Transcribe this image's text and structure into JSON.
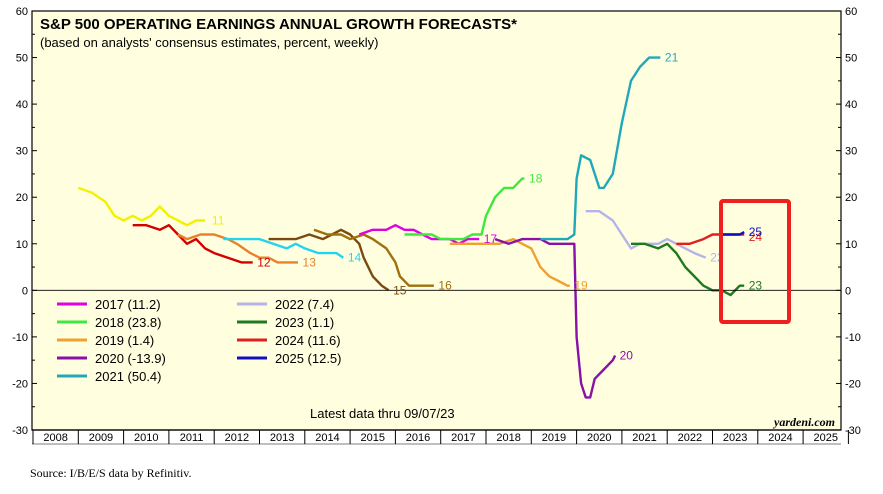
{
  "chart_data": {
    "type": "line",
    "title": "S&P 500 OPERATING EARNINGS ANNUAL GROWTH FORECASTS*",
    "subtitle": "(based on analysts' consensus estimates, percent, weekly)",
    "ylim": [
      -30,
      60
    ],
    "yticks": [
      -30,
      -20,
      -10,
      0,
      10,
      20,
      30,
      40,
      50,
      60
    ],
    "xlim": [
      2008,
      2026
    ],
    "xticks": [
      "2008",
      "2009",
      "2010",
      "2011",
      "2012",
      "2013",
      "2014",
      "2015",
      "2016",
      "2017",
      "2018",
      "2019",
      "2020",
      "2021",
      "2022",
      "2023",
      "2024",
      "2025"
    ],
    "note": "Latest data thru 09/07/23",
    "brand": "yardeni.com",
    "source": "Source: I/B/E/S data by Refinitiv.",
    "series": [
      {
        "name": "11",
        "color": "#f4f000",
        "points": [
          [
            2009.0,
            22
          ],
          [
            2009.3,
            21
          ],
          [
            2009.6,
            19
          ],
          [
            2009.8,
            16
          ],
          [
            2010.0,
            15
          ],
          [
            2010.2,
            16
          ],
          [
            2010.4,
            15
          ],
          [
            2010.6,
            16
          ],
          [
            2010.8,
            18
          ],
          [
            2011.0,
            16
          ],
          [
            2011.2,
            15
          ],
          [
            2011.4,
            14
          ],
          [
            2011.6,
            15
          ],
          [
            2011.8,
            15
          ]
        ],
        "label": "11",
        "label_pos": [
          2011.95,
          15
        ]
      },
      {
        "name": "12",
        "color": "#d40000",
        "points": [
          [
            2010.2,
            14
          ],
          [
            2010.5,
            14
          ],
          [
            2010.8,
            13
          ],
          [
            2011.0,
            14
          ],
          [
            2011.2,
            12
          ],
          [
            2011.4,
            10
          ],
          [
            2011.6,
            11
          ],
          [
            2011.8,
            9
          ],
          [
            2012.0,
            8
          ],
          [
            2012.3,
            7
          ],
          [
            2012.6,
            6
          ],
          [
            2012.85,
            6
          ]
        ],
        "label": "12",
        "label_pos": [
          2012.95,
          6
        ]
      },
      {
        "name": "13",
        "color": "#e8822a",
        "points": [
          [
            2011.2,
            12
          ],
          [
            2011.4,
            11
          ],
          [
            2011.7,
            12
          ],
          [
            2012.0,
            12
          ],
          [
            2012.3,
            11
          ],
          [
            2012.5,
            10
          ],
          [
            2012.8,
            8
          ],
          [
            2013.0,
            7
          ],
          [
            2013.2,
            7
          ],
          [
            2013.4,
            6
          ],
          [
            2013.6,
            6
          ],
          [
            2013.85,
            6
          ]
        ],
        "label": "13",
        "label_pos": [
          2013.95,
          6
        ]
      },
      {
        "name": "14",
        "color": "#22d4ee",
        "points": [
          [
            2012.2,
            11
          ],
          [
            2012.5,
            11
          ],
          [
            2012.8,
            11
          ],
          [
            2013.0,
            11
          ],
          [
            2013.3,
            10
          ],
          [
            2013.6,
            9
          ],
          [
            2013.8,
            10
          ],
          [
            2014.0,
            9
          ],
          [
            2014.3,
            8
          ],
          [
            2014.5,
            8
          ],
          [
            2014.7,
            8
          ],
          [
            2014.85,
            7
          ]
        ],
        "label": "14",
        "label_pos": [
          2014.95,
          7
        ]
      },
      {
        "name": "15",
        "color": "#7a4a10",
        "points": [
          [
            2013.2,
            11
          ],
          [
            2013.5,
            11
          ],
          [
            2013.8,
            11
          ],
          [
            2014.1,
            12
          ],
          [
            2014.4,
            11
          ],
          [
            2014.6,
            12
          ],
          [
            2014.8,
            13
          ],
          [
            2015.0,
            12
          ],
          [
            2015.2,
            10
          ],
          [
            2015.3,
            7
          ],
          [
            2015.5,
            3
          ],
          [
            2015.7,
            1
          ],
          [
            2015.85,
            0
          ]
        ],
        "label": "15",
        "label_pos": [
          2015.95,
          0
        ]
      },
      {
        "name": "16",
        "color": "#a0700c",
        "points": [
          [
            2014.2,
            13
          ],
          [
            2014.5,
            12
          ],
          [
            2014.8,
            12
          ],
          [
            2015.0,
            11
          ],
          [
            2015.3,
            12
          ],
          [
            2015.5,
            11
          ],
          [
            2015.8,
            9
          ],
          [
            2016.0,
            6
          ],
          [
            2016.1,
            3
          ],
          [
            2016.3,
            1
          ],
          [
            2016.5,
            1
          ],
          [
            2016.7,
            1
          ],
          [
            2016.85,
            1
          ]
        ],
        "label": "16",
        "label_pos": [
          2016.95,
          1
        ]
      },
      {
        "name": "17",
        "color": "#e000e0",
        "points": [
          [
            2015.2,
            12
          ],
          [
            2015.5,
            13
          ],
          [
            2015.8,
            13
          ],
          [
            2016.0,
            14
          ],
          [
            2016.2,
            13
          ],
          [
            2016.4,
            13
          ],
          [
            2016.6,
            12
          ],
          [
            2016.8,
            11
          ],
          [
            2017.0,
            11
          ],
          [
            2017.2,
            11
          ],
          [
            2017.4,
            10
          ],
          [
            2017.6,
            11
          ],
          [
            2017.85,
            11
          ]
        ],
        "label": "17",
        "label_pos": [
          2017.95,
          11
        ]
      },
      {
        "name": "18",
        "color": "#3fe83f",
        "points": [
          [
            2016.2,
            12
          ],
          [
            2016.5,
            12
          ],
          [
            2016.8,
            12
          ],
          [
            2017.0,
            11
          ],
          [
            2017.3,
            11
          ],
          [
            2017.5,
            11
          ],
          [
            2017.7,
            12
          ],
          [
            2017.9,
            12
          ],
          [
            2018.0,
            16
          ],
          [
            2018.2,
            20
          ],
          [
            2018.4,
            22
          ],
          [
            2018.6,
            22
          ],
          [
            2018.8,
            24
          ],
          [
            2018.85,
            24
          ]
        ],
        "label": "18",
        "label_pos": [
          2018.95,
          24
        ]
      },
      {
        "name": "19",
        "color": "#f0a030",
        "points": [
          [
            2017.2,
            10
          ],
          [
            2017.5,
            10
          ],
          [
            2017.8,
            10
          ],
          [
            2018.0,
            10
          ],
          [
            2018.3,
            10
          ],
          [
            2018.6,
            11
          ],
          [
            2018.8,
            10
          ],
          [
            2019.0,
            9
          ],
          [
            2019.2,
            5
          ],
          [
            2019.4,
            3
          ],
          [
            2019.6,
            2
          ],
          [
            2019.8,
            1
          ],
          [
            2019.85,
            1
          ]
        ],
        "label": "19",
        "label_pos": [
          2019.95,
          1
        ]
      },
      {
        "name": "20",
        "color": "#8a10a8",
        "points": [
          [
            2018.2,
            11
          ],
          [
            2018.5,
            10
          ],
          [
            2018.8,
            11
          ],
          [
            2019.0,
            11
          ],
          [
            2019.2,
            11
          ],
          [
            2019.4,
            10
          ],
          [
            2019.6,
            10
          ],
          [
            2019.8,
            10
          ],
          [
            2019.95,
            10
          ],
          [
            2020.0,
            -10
          ],
          [
            2020.1,
            -20
          ],
          [
            2020.2,
            -23
          ],
          [
            2020.3,
            -23
          ],
          [
            2020.4,
            -19
          ],
          [
            2020.6,
            -17
          ],
          [
            2020.8,
            -15
          ],
          [
            2020.85,
            -14
          ]
        ],
        "label": "20",
        "label_pos": [
          2020.95,
          -14
        ]
      },
      {
        "name": "21",
        "color": "#20a8b8",
        "points": [
          [
            2019.2,
            11
          ],
          [
            2019.5,
            11
          ],
          [
            2019.8,
            11
          ],
          [
            2019.95,
            12
          ],
          [
            2020.0,
            24
          ],
          [
            2020.1,
            29
          ],
          [
            2020.3,
            28
          ],
          [
            2020.5,
            22
          ],
          [
            2020.6,
            22
          ],
          [
            2020.8,
            25
          ],
          [
            2021.0,
            36
          ],
          [
            2021.2,
            45
          ],
          [
            2021.4,
            48
          ],
          [
            2021.6,
            50
          ],
          [
            2021.85,
            50
          ]
        ],
        "label": "21",
        "label_pos": [
          2021.95,
          50
        ]
      },
      {
        "name": "22",
        "color": "#b4b4ea",
        "points": [
          [
            2020.2,
            17
          ],
          [
            2020.5,
            17
          ],
          [
            2020.8,
            15
          ],
          [
            2021.0,
            12
          ],
          [
            2021.2,
            9
          ],
          [
            2021.4,
            10
          ],
          [
            2021.6,
            10
          ],
          [
            2021.8,
            10
          ],
          [
            2022.0,
            11
          ],
          [
            2022.2,
            10
          ],
          [
            2022.4,
            9
          ],
          [
            2022.6,
            8
          ],
          [
            2022.85,
            7
          ]
        ],
        "label": "22",
        "label_pos": [
          2022.95,
          7
        ]
      },
      {
        "name": "23",
        "color": "#1e7a1e",
        "points": [
          [
            2021.2,
            10
          ],
          [
            2021.5,
            10
          ],
          [
            2021.8,
            9
          ],
          [
            2022.0,
            10
          ],
          [
            2022.2,
            8
          ],
          [
            2022.4,
            5
          ],
          [
            2022.6,
            3
          ],
          [
            2022.8,
            1
          ],
          [
            2023.0,
            0
          ],
          [
            2023.2,
            0
          ],
          [
            2023.4,
            -1
          ],
          [
            2023.6,
            1
          ],
          [
            2023.7,
            1
          ]
        ],
        "label": "23",
        "label_pos": [
          2023.8,
          1
        ]
      },
      {
        "name": "24",
        "color": "#e02020",
        "points": [
          [
            2022.2,
            10
          ],
          [
            2022.5,
            10
          ],
          [
            2022.8,
            11
          ],
          [
            2023.0,
            12
          ],
          [
            2023.2,
            12
          ],
          [
            2023.4,
            12
          ],
          [
            2023.6,
            12
          ],
          [
            2023.7,
            12
          ]
        ],
        "label": "24",
        "label_pos": [
          2023.8,
          11.5
        ]
      },
      {
        "name": "25",
        "color": "#1010c0",
        "points": [
          [
            2023.2,
            12
          ],
          [
            2023.4,
            12
          ],
          [
            2023.6,
            12
          ],
          [
            2023.7,
            12.5
          ]
        ],
        "label": "25",
        "label_pos": [
          2023.8,
          12.5
        ]
      }
    ],
    "legend": [
      {
        "text": "2017 (11.2)",
        "color": "#e000e0"
      },
      {
        "text": "2018 (23.8)",
        "color": "#3fe83f"
      },
      {
        "text": "2019 (1.4)",
        "color": "#f0a030"
      },
      {
        "text": "2020 (-13.9)",
        "color": "#8a10a8"
      },
      {
        "text": "2021 (50.4)",
        "color": "#20a8b8"
      },
      {
        "text": "2022 (7.4)",
        "color": "#b4b4ea"
      },
      {
        "text": "2023 (1.1)",
        "color": "#1e7a1e"
      },
      {
        "text": "2024 (11.6)",
        "color": "#e02020"
      },
      {
        "text": "2025 (12.5)",
        "color": "#1010c0"
      }
    ]
  }
}
